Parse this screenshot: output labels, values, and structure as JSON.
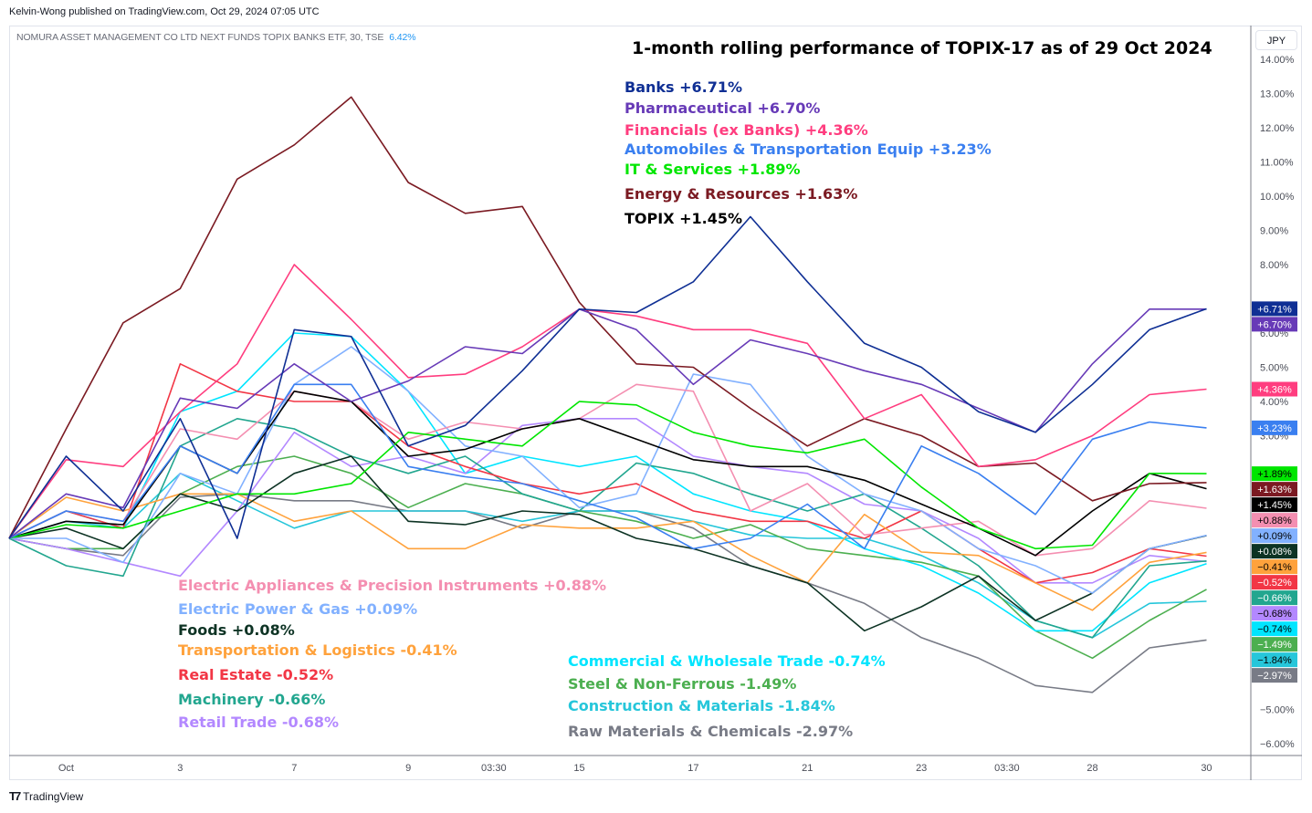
{
  "header": {
    "published": "Kelvin-Wong published on TradingView.com, Oct 29, 2024 07:05 UTC",
    "symbol": "NOMURA ASSET MANAGEMENT CO LTD NEXT FUNDS TOPIX BANKS ETF, 30, TSE",
    "symbol_change": "6.42%",
    "currency": "JPY"
  },
  "footer": {
    "brand": "TradingView",
    "logo_icon": "tradingview-logo-icon"
  },
  "chart_data": {
    "type": "line",
    "title": "1-month rolling performance of TOPIX-17 as of 29 Oct 2024",
    "ylabel_unit": "%",
    "ylim": [
      -6.6,
      15
    ],
    "grid": false,
    "y_ticks": [
      "14.00%",
      "13.00%",
      "12.00%",
      "11.00%",
      "10.00%",
      "9.00%",
      "8.00%",
      "6.00%",
      "5.00%",
      "4.00%",
      "3.00%",
      "−5.00%",
      "−6.00%"
    ],
    "y_tick_values": [
      14,
      13,
      12,
      11,
      10,
      9,
      8,
      6,
      5,
      4,
      3,
      -5,
      -6
    ],
    "x_ticks": [
      {
        "label": "Oct",
        "at": "2024-10-01 09:00"
      },
      {
        "label": "3",
        "at": "2024-10-03 09:00"
      },
      {
        "label": "7",
        "at": "2024-10-07 09:00"
      },
      {
        "label": "9",
        "at": "2024-10-09 09:00"
      },
      {
        "label": "03:30",
        "at": "2024-10-10 12:00"
      },
      {
        "label": "15",
        "at": "2024-10-15 09:00"
      },
      {
        "label": "17",
        "at": "2024-10-17 09:00"
      },
      {
        "label": "21",
        "at": "2024-10-21 09:00"
      },
      {
        "label": "23",
        "at": "2024-10-23 09:00"
      },
      {
        "label": "03:30",
        "at": "2024-10-24 12:00"
      },
      {
        "label": "28",
        "at": "2024-10-28 09:00"
      },
      {
        "label": "30",
        "at": "2024-10-30 09:00"
      }
    ],
    "x": [
      "2024-09-30 09:00",
      "2024-10-01 09:00",
      "2024-10-02 09:00",
      "2024-10-03 09:00",
      "2024-10-04 09:00",
      "2024-10-07 09:00",
      "2024-10-08 09:00",
      "2024-10-09 09:00",
      "2024-10-10 09:00",
      "2024-10-11 09:00",
      "2024-10-15 09:00",
      "2024-10-16 09:00",
      "2024-10-17 09:00",
      "2024-10-18 09:00",
      "2024-10-21 09:00",
      "2024-10-22 09:00",
      "2024-10-23 09:00",
      "2024-10-24 09:00",
      "2024-10-25 09:00",
      "2024-10-28 09:00",
      "2024-10-29 09:00",
      "2024-10-29 15:00"
    ],
    "series": [
      {
        "name": "Banks",
        "legend": "Banks +6.71%",
        "badge": "+6.71%",
        "color": "#0f2f94",
        "badge_text": "#ffffff",
        "values": [
          0,
          2.4,
          0.8,
          3.5,
          0,
          6.1,
          5.9,
          2.7,
          3.3,
          4.9,
          6.7,
          6.6,
          7.5,
          9.4,
          7.5,
          5.7,
          5.0,
          3.7,
          3.1,
          4.5,
          6.1,
          6.71
        ]
      },
      {
        "name": "Pharmaceutical",
        "legend": "Pharmaceutical +6.70%",
        "badge": "+6.70%",
        "color": "#673ab7",
        "badge_text": "#ffffff",
        "values": [
          0,
          1.3,
          0.9,
          4.1,
          3.8,
          5.1,
          4.0,
          4.6,
          5.6,
          5.4,
          6.7,
          6.1,
          4.5,
          5.8,
          5.4,
          4.9,
          4.5,
          3.8,
          3.1,
          5.1,
          6.7,
          6.7
        ]
      },
      {
        "name": "Financials (ex Banks)",
        "legend": "Financials (ex Banks) +4.36%",
        "badge": "+4.36%",
        "color": "#ff3d7f",
        "badge_text": "#ffffff",
        "values": [
          0,
          2.3,
          2.1,
          3.7,
          5.1,
          8.0,
          6.4,
          4.7,
          4.8,
          5.6,
          6.7,
          6.5,
          6.1,
          6.1,
          5.7,
          3.5,
          4.2,
          2.1,
          2.3,
          3.0,
          4.2,
          4.36
        ]
      },
      {
        "name": "Automobiles & Transportation Equip",
        "legend": "Automobiles & Transportation Equip +3.23%",
        "badge": "+3.23%",
        "color": "#3a7ff0",
        "badge_text": "#ffffff",
        "values": [
          0,
          0.8,
          0.5,
          2.7,
          1.9,
          4.5,
          4.5,
          2.1,
          1.8,
          1.6,
          1.1,
          0.6,
          -0.3,
          0,
          1.0,
          -0.3,
          2.7,
          1.9,
          0.7,
          2.9,
          3.4,
          3.23
        ]
      },
      {
        "name": "IT & Services",
        "legend": "IT & Services +1.89%",
        "badge": "+1.89%",
        "color": "#00e600",
        "badge_text": "#000000",
        "values": [
          0,
          0.4,
          0.3,
          0.8,
          1.3,
          1.3,
          1.6,
          3.1,
          2.9,
          2.7,
          4.0,
          3.9,
          3.1,
          2.7,
          2.5,
          2.9,
          1.5,
          0.3,
          -0.3,
          -0.2,
          1.9,
          1.89
        ]
      },
      {
        "name": "Energy & Resources",
        "legend": "Energy & Resources +1.63%",
        "badge": "+1.63%",
        "color": "#7b1a22",
        "badge_text": "#ffffff",
        "values": [
          0,
          3.2,
          6.3,
          7.3,
          10.5,
          11.5,
          12.9,
          10.4,
          9.5,
          9.7,
          6.9,
          5.1,
          5.0,
          3.8,
          2.7,
          3.5,
          3.0,
          2.1,
          2.2,
          1.1,
          1.6,
          1.63
        ]
      },
      {
        "name": "TOPIX",
        "legend": "TOPIX +1.45%",
        "badge": "+1.45%",
        "color": "#000000",
        "badge_text": "#ffffff",
        "values": [
          0,
          0.5,
          0.4,
          2.7,
          1.9,
          4.3,
          4.0,
          2.4,
          2.6,
          3.2,
          3.5,
          2.9,
          2.3,
          2.1,
          2.1,
          1.7,
          1.0,
          0.3,
          -0.5,
          0.8,
          1.9,
          1.45
        ]
      },
      {
        "name": "Electric Appliances & Precision Instruments",
        "legend": "Electric Appliances & Precision Instruments +0.88%",
        "badge": "+0.88%",
        "color": "#f48fb1",
        "badge_text": "#000000",
        "values": [
          0,
          0.8,
          0.5,
          3.2,
          2.9,
          4.3,
          4.0,
          2.9,
          3.4,
          3.2,
          3.5,
          4.5,
          4.3,
          0.8,
          1.6,
          0.1,
          0.3,
          0.5,
          -0.5,
          -0.3,
          1.1,
          0.88
        ]
      },
      {
        "name": "Electric Power & Gas",
        "legend": "Electric Power & Gas +0.09%",
        "badge": "+0.09%",
        "color": "#82b1ff",
        "badge_text": "#000000",
        "values": [
          0,
          0,
          -0.7,
          1.9,
          1.3,
          4.5,
          5.6,
          4.3,
          2.7,
          2.4,
          0.9,
          1.3,
          4.8,
          4.5,
          2.4,
          1.3,
          0.8,
          -0.3,
          -0.8,
          -1.6,
          -0.3,
          0.09
        ]
      },
      {
        "name": "Foods",
        "legend": "Foods +0.08%",
        "badge": "+0.08%",
        "color": "#0d3324",
        "badge_text": "#ffffff",
        "values": [
          0,
          0.3,
          -0.3,
          1.3,
          0.8,
          1.9,
          2.4,
          0.5,
          0.4,
          0.8,
          0.7,
          0,
          -0.3,
          -0.8,
          -1.3,
          -2.7,
          -2.0,
          -1.1,
          -2.4,
          -1.6,
          -0.3,
          0.08
        ]
      },
      {
        "name": "Transportation & Logistics",
        "legend": "Transportation & Logistics -0.41%",
        "badge": "−0.41%",
        "color": "#ffa23c",
        "badge_text": "#000000",
        "values": [
          0,
          1.2,
          0.8,
          1.3,
          1.3,
          0.5,
          0.8,
          -0.3,
          -0.3,
          0.4,
          0.3,
          0.3,
          0.5,
          -0.5,
          -1.3,
          0.7,
          -0.4,
          -0.5,
          -1.3,
          -2.1,
          -0.7,
          -0.41
        ]
      },
      {
        "name": "Real Estate",
        "legend": "Real Estate -0.52%",
        "badge": "−0.52%",
        "color": "#f23645",
        "badge_text": "#ffffff",
        "values": [
          0,
          0.8,
          0.3,
          5.1,
          4.3,
          4.0,
          4.0,
          2.7,
          2.1,
          1.6,
          1.3,
          1.6,
          0.8,
          0.5,
          0.5,
          0,
          0.8,
          -0.3,
          -1.3,
          -1.0,
          -0.3,
          -0.52
        ]
      },
      {
        "name": "Machinery",
        "legend": "Machinery -0.66%",
        "badge": "−0.66%",
        "color": "#22a68f",
        "badge_text": "#ffffff",
        "values": [
          0,
          -0.8,
          -1.1,
          2.7,
          3.5,
          3.2,
          2.4,
          1.9,
          2.4,
          1.3,
          0.8,
          2.2,
          1.9,
          1.3,
          0.8,
          1.3,
          0.3,
          -0.8,
          -2.4,
          -2.9,
          -0.8,
          -0.66
        ]
      },
      {
        "name": "Retail Trade",
        "legend": "Retail Trade -0.68%",
        "badge": "−0.68%",
        "color": "#b388ff",
        "badge_text": "#000000",
        "values": [
          0,
          -0.3,
          -0.7,
          -1.1,
          0.8,
          3.1,
          2.1,
          2.4,
          1.9,
          3.3,
          3.5,
          3.5,
          2.4,
          2.1,
          1.9,
          1.0,
          0.8,
          0,
          -1.3,
          -1.3,
          -0.5,
          -0.68
        ]
      },
      {
        "name": "Commercial & Wholesale Trade",
        "legend": "Commercial & Wholesale Trade -0.74%",
        "badge": "−0.74%",
        "color": "#00e5ff",
        "badge_text": "#000000",
        "values": [
          0,
          0.8,
          0.3,
          3.7,
          4.3,
          6.0,
          5.9,
          4.3,
          1.9,
          2.4,
          2.1,
          2.4,
          1.3,
          0.8,
          0.5,
          -0.3,
          -0.8,
          -1.6,
          -2.7,
          -2.7,
          -1.3,
          -0.74
        ]
      },
      {
        "name": "Steel & Non-Ferrous",
        "legend": "Steel & Non-Ferrous -1.49%",
        "badge": "−1.49%",
        "color": "#4caf50",
        "badge_text": "#ffffff",
        "values": [
          0,
          -0.3,
          -0.3,
          1.3,
          2.1,
          2.4,
          1.9,
          0.9,
          1.6,
          1.3,
          0.8,
          0.5,
          0,
          0.4,
          -0.3,
          -0.5,
          -0.7,
          -1.1,
          -2.7,
          -3.5,
          -2.4,
          -1.49
        ]
      },
      {
        "name": "Construction & Materials",
        "legend": "Construction & Materials -1.84%",
        "badge": "−1.84%",
        "color": "#26c6da",
        "badge_text": "#000000",
        "values": [
          0,
          0.5,
          0.3,
          1.9,
          1.1,
          0.3,
          0.8,
          0.8,
          0.8,
          0.5,
          0.8,
          0.8,
          0.5,
          0.1,
          0,
          0,
          -0.5,
          -1.3,
          -2.4,
          -2.9,
          -1.9,
          -1.84
        ]
      },
      {
        "name": "Raw Materials & Chemicals",
        "legend": "Raw Materials & Chemicals -2.97%",
        "badge": "−2.97%",
        "color": "#787b86",
        "badge_text": "#ffffff",
        "values": [
          0,
          -0.3,
          -0.5,
          1.2,
          1.3,
          1.1,
          1.1,
          0.8,
          0.8,
          0.3,
          0.8,
          0.8,
          0.3,
          -0.8,
          -1.3,
          -1.9,
          -2.9,
          -3.5,
          -4.3,
          -4.5,
          -3.2,
          -2.97
        ]
      }
    ]
  }
}
